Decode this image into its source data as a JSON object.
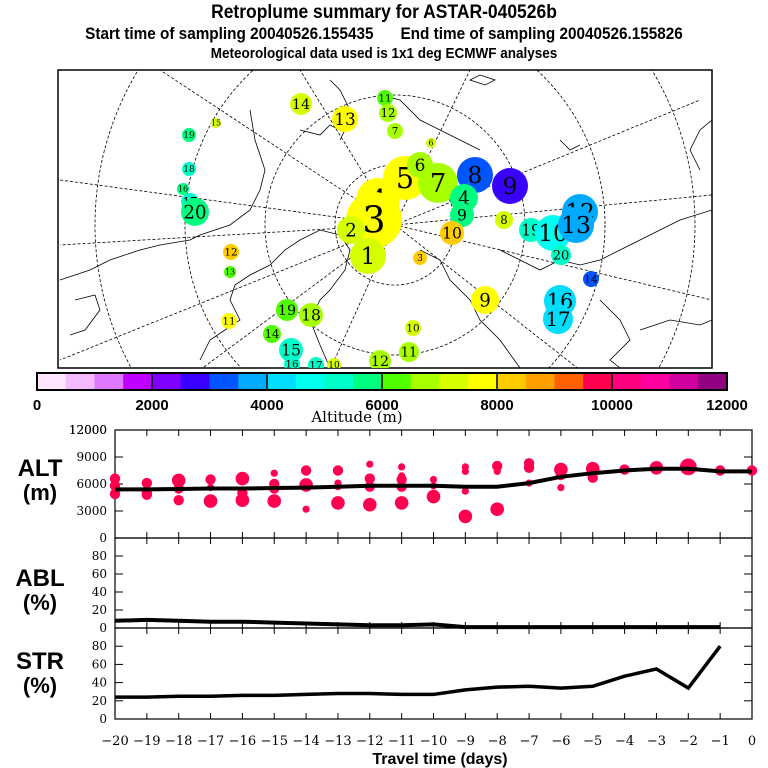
{
  "header": {
    "title": "Retroplume summary for ASTAR-040526b",
    "start_label": "Start time of sampling 20040526.155435",
    "end_label": "End time of sampling 20040526.155826",
    "subtitle": "Meteorological data used is 1x1 deg ECMWF analyses"
  },
  "colorbar": {
    "label": "Altitude (m)",
    "ticks": [
      "0",
      "2000",
      "4000",
      "6000",
      "8000",
      "10000",
      "12000"
    ],
    "colors": [
      "#ffe6ff",
      "#f5b9ff",
      "#e077ff",
      "#c000ff",
      "#8000ff",
      "#3a00ff",
      "#0055ff",
      "#00aaff",
      "#00ddff",
      "#00ffee",
      "#00ffc8",
      "#00ff80",
      "#50ff00",
      "#a8ff00",
      "#d8ff00",
      "#ffff00",
      "#ffcc00",
      "#ffa000",
      "#ff6000",
      "#ff0050",
      "#ff0080",
      "#ff00a0",
      "#d000a0",
      "#900080"
    ]
  },
  "map": {
    "clusters": [
      {
        "label": "15",
        "color": "#d8ff00"
      },
      {
        "label": "19",
        "color": "#00ff80"
      },
      {
        "label": "18",
        "color": "#00ffc8"
      },
      {
        "label": "16",
        "color": "#00ff80"
      },
      {
        "label": "17",
        "color": "#00ffc8"
      },
      {
        "label": "20",
        "color": "#00ff80"
      },
      {
        "label": "14",
        "color": "#d8ff00"
      },
      {
        "label": "13",
        "color": "#ffff00"
      },
      {
        "label": "11",
        "color": "#50ff00"
      },
      {
        "label": "12",
        "color": "#a8ff00"
      },
      {
        "label": "7",
        "color": "#a8ff00"
      },
      {
        "label": "6",
        "color": "#d8ff00"
      },
      {
        "label": "5",
        "color": "#ffff00"
      },
      {
        "label": "4",
        "color": "#ffff00"
      },
      {
        "label": "3",
        "color": "#ffff00"
      },
      {
        "label": "2",
        "color": "#d8ff00"
      },
      {
        "label": "1",
        "color": "#d8ff00"
      },
      {
        "label": "6",
        "color": "#a8ff00"
      },
      {
        "label": "7",
        "color": "#a8ff00"
      },
      {
        "label": "8",
        "color": "#0055ff"
      },
      {
        "label": "9",
        "color": "#3a00ff"
      },
      {
        "label": "4",
        "color": "#00ff80"
      },
      {
        "label": "9",
        "color": "#00ff80"
      },
      {
        "label": "10",
        "color": "#ffcc00"
      },
      {
        "label": "8",
        "color": "#d8ff00"
      },
      {
        "label": "19",
        "color": "#00ffc8"
      },
      {
        "label": "10",
        "color": "#00ffee"
      },
      {
        "label": "12",
        "color": "#00aaff"
      },
      {
        "label": "13",
        "color": "#00aaff"
      },
      {
        "label": "20",
        "color": "#00ffc8"
      },
      {
        "label": "14",
        "color": "#0055ff"
      },
      {
        "label": "16",
        "color": "#00ddff"
      },
      {
        "label": "17",
        "color": "#00ddff"
      },
      {
        "label": "9",
        "color": "#ffff00"
      },
      {
        "label": "12",
        "color": "#ffcc00"
      },
      {
        "label": "13",
        "color": "#50ff00"
      },
      {
        "label": "11",
        "color": "#ffff00"
      },
      {
        "label": "19",
        "color": "#50ff00"
      },
      {
        "label": "18",
        "color": "#a8ff00"
      },
      {
        "label": "14",
        "color": "#50ff00"
      },
      {
        "label": "15",
        "color": "#00ffc8"
      },
      {
        "label": "16",
        "color": "#00ffc8"
      },
      {
        "label": "17",
        "color": "#00ffc8"
      },
      {
        "label": "10",
        "color": "#d8ff00"
      },
      {
        "label": "12",
        "color": "#a8ff00"
      },
      {
        "label": "11",
        "color": "#a8ff00"
      },
      {
        "label": "10",
        "color": "#d8ff00"
      },
      {
        "label": "11",
        "color": "#a8ff00"
      },
      {
        "label": "3",
        "color": "#ffcc00"
      }
    ]
  },
  "chart_data": [
    {
      "type": "scatter",
      "title": "ALT",
      "ylabel": "ALT (m)",
      "xlabel": "Travel time (days)",
      "xlim": [
        -20,
        0
      ],
      "ylim": [
        0,
        12000
      ],
      "yticks": [
        "12000",
        "9000",
        "6000",
        "3000",
        "0"
      ],
      "ytick_values": [
        12000,
        9000,
        6000,
        3000,
        0
      ],
      "mean_line": {
        "x": [
          -20,
          -19,
          -18,
          -17,
          -16,
          -15,
          -14,
          -13,
          -12,
          -11,
          -10,
          -9,
          -8,
          -7,
          -6,
          -5,
          -4,
          -3,
          -2,
          -1,
          0
        ],
        "y": [
          5400,
          5400,
          5450,
          5500,
          5500,
          5550,
          5600,
          5700,
          5800,
          5800,
          5800,
          5700,
          5700,
          6100,
          6800,
          7200,
          7500,
          7700,
          7700,
          7400,
          7400
        ]
      },
      "points": [
        {
          "x": -20,
          "y": 6600,
          "s": 2
        },
        {
          "x": -20,
          "y": 5800,
          "s": 2
        },
        {
          "x": -20,
          "y": 4900,
          "s": 2
        },
        {
          "x": -19,
          "y": 6100,
          "s": 2
        },
        {
          "x": -19,
          "y": 5000,
          "s": 2
        },
        {
          "x": -19,
          "y": 4800,
          "s": 2
        },
        {
          "x": -18,
          "y": 6400,
          "s": 3
        },
        {
          "x": -18,
          "y": 5500,
          "s": 2
        },
        {
          "x": -18,
          "y": 4200,
          "s": 2
        },
        {
          "x": -17,
          "y": 6500,
          "s": 2
        },
        {
          "x": -17,
          "y": 5600,
          "s": 1
        },
        {
          "x": -17,
          "y": 4100,
          "s": 3
        },
        {
          "x": -16,
          "y": 6600,
          "s": 3
        },
        {
          "x": -16,
          "y": 5000,
          "s": 2
        },
        {
          "x": -16,
          "y": 4200,
          "s": 3
        },
        {
          "x": -15,
          "y": 7200,
          "s": 1
        },
        {
          "x": -15,
          "y": 6000,
          "s": 2
        },
        {
          "x": -15,
          "y": 5500,
          "s": 2
        },
        {
          "x": -15,
          "y": 4100,
          "s": 3
        },
        {
          "x": -14,
          "y": 7500,
          "s": 2
        },
        {
          "x": -14,
          "y": 5900,
          "s": 3
        },
        {
          "x": -14,
          "y": 3200,
          "s": 1
        },
        {
          "x": -13,
          "y": 7500,
          "s": 2
        },
        {
          "x": -13,
          "y": 6100,
          "s": 1
        },
        {
          "x": -13,
          "y": 5700,
          "s": 1
        },
        {
          "x": -13,
          "y": 3900,
          "s": 3
        },
        {
          "x": -12,
          "y": 8200,
          "s": 1
        },
        {
          "x": -12,
          "y": 6600,
          "s": 2
        },
        {
          "x": -12,
          "y": 5700,
          "s": 2
        },
        {
          "x": -12,
          "y": 3700,
          "s": 3
        },
        {
          "x": -11,
          "y": 7900,
          "s": 1
        },
        {
          "x": -11,
          "y": 6900,
          "s": 1
        },
        {
          "x": -11,
          "y": 6500,
          "s": 2
        },
        {
          "x": -11,
          "y": 5700,
          "s": 2
        },
        {
          "x": -11,
          "y": 3900,
          "s": 3
        },
        {
          "x": -10,
          "y": 6500,
          "s": 1
        },
        {
          "x": -10,
          "y": 5800,
          "s": 1
        },
        {
          "x": -10,
          "y": 4600,
          "s": 3
        },
        {
          "x": -9,
          "y": 7900,
          "s": 1
        },
        {
          "x": -9,
          "y": 7400,
          "s": 1
        },
        {
          "x": -9,
          "y": 5200,
          "s": 1
        },
        {
          "x": -9,
          "y": 2400,
          "s": 3
        },
        {
          "x": -8,
          "y": 8000,
          "s": 2
        },
        {
          "x": -8,
          "y": 7400,
          "s": 1
        },
        {
          "x": -8,
          "y": 3200,
          "s": 3
        },
        {
          "x": -7,
          "y": 8300,
          "s": 2
        },
        {
          "x": -7,
          "y": 7800,
          "s": 2
        },
        {
          "x": -7,
          "y": 6100,
          "s": 1
        },
        {
          "x": -6,
          "y": 7600,
          "s": 3
        },
        {
          "x": -6,
          "y": 7000,
          "s": 2
        },
        {
          "x": -6,
          "y": 5600,
          "s": 1
        },
        {
          "x": -5,
          "y": 7700,
          "s": 3
        },
        {
          "x": -5,
          "y": 6700,
          "s": 2
        },
        {
          "x": -4,
          "y": 7600,
          "s": 2
        },
        {
          "x": -3,
          "y": 7800,
          "s": 3
        },
        {
          "x": -2,
          "y": 7900,
          "s": 4
        },
        {
          "x": -1,
          "y": 7500,
          "s": 2
        },
        {
          "x": 0,
          "y": 7500,
          "s": 2
        }
      ],
      "point_color": "#ff0050"
    },
    {
      "type": "line",
      "title": "ABL",
      "ylabel": "ABL (%)",
      "xlim": [
        -20,
        0
      ],
      "ylim": [
        0,
        100
      ],
      "yticks": [
        "0",
        "20",
        "40",
        "60",
        "80"
      ],
      "ytick_values": [
        0,
        20,
        40,
        60,
        80
      ],
      "x": [
        -20,
        -19,
        -18,
        -17,
        -16,
        -15,
        -14,
        -13,
        -12,
        -11,
        -10,
        -9,
        -8,
        -7,
        -6,
        -5,
        -4,
        -3,
        -2,
        -1
      ],
      "y": [
        8,
        9,
        8,
        7,
        7,
        6,
        5,
        4,
        3,
        3,
        4,
        1,
        1,
        1,
        1,
        1,
        1,
        1,
        1,
        1
      ]
    },
    {
      "type": "line",
      "title": "STR",
      "ylabel": "STR (%)",
      "xlabel": "Travel time (days)",
      "xlim": [
        -20,
        0
      ],
      "ylim": [
        0,
        100
      ],
      "yticks": [
        "0",
        "20",
        "40",
        "60",
        "80"
      ],
      "ytick_values": [
        0,
        20,
        40,
        60,
        80
      ],
      "xticks": [
        "−20",
        "−19",
        "−18",
        "−17",
        "−16",
        "−15",
        "−14",
        "−13",
        "−12",
        "−11",
        "−10",
        "−9",
        "−8",
        "−7",
        "−6",
        "−5",
        "−4",
        "−3",
        "−2",
        "−1",
        "0"
      ],
      "x": [
        -20,
        -19,
        -18,
        -17,
        -16,
        -15,
        -14,
        -13,
        -12,
        -11,
        -10,
        -9,
        -8,
        -7,
        -6,
        -5,
        -4,
        -3,
        -2,
        -1
      ],
      "y": [
        24,
        24,
        25,
        25,
        26,
        26,
        27,
        28,
        28,
        27,
        27,
        32,
        35,
        36,
        34,
        36,
        47,
        55,
        34,
        80
      ]
    }
  ],
  "labels": {
    "alt_l1": "ALT",
    "alt_l2": "(m)",
    "abl_l1": "ABL",
    "abl_l2": "(%)",
    "str_l1": "STR",
    "str_l2": "(%)",
    "xlabel": "Travel time (days)"
  }
}
